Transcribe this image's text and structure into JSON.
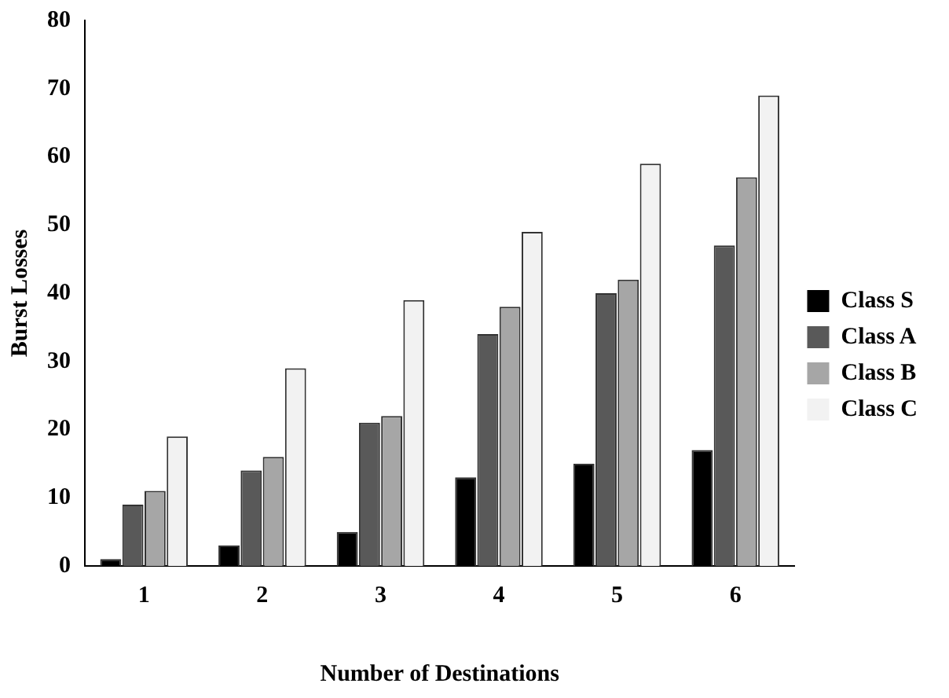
{
  "chart_data": {
    "type": "bar",
    "xlabel": "Number of Destinations",
    "ylabel": "Burst Losses",
    "categories": [
      "1",
      "2",
      "3",
      "4",
      "5",
      "6"
    ],
    "series": [
      {
        "name": "Class S",
        "color": "#000000",
        "values": [
          1,
          3,
          5,
          13,
          15,
          17
        ]
      },
      {
        "name": "Class A",
        "color": "#595959",
        "values": [
          9,
          14,
          21,
          34,
          40,
          47
        ]
      },
      {
        "name": "Class B",
        "color": "#a6a6a6",
        "values": [
          11,
          16,
          22,
          38,
          42,
          57
        ]
      },
      {
        "name": "Class C",
        "color": "#f2f2f2",
        "values": [
          19,
          29,
          39,
          49,
          59,
          69
        ]
      }
    ],
    "ylim": [
      0,
      80
    ],
    "yticks": [
      0,
      10,
      20,
      30,
      40,
      50,
      60,
      70,
      80
    ],
    "grid": false,
    "legend": "right"
  }
}
